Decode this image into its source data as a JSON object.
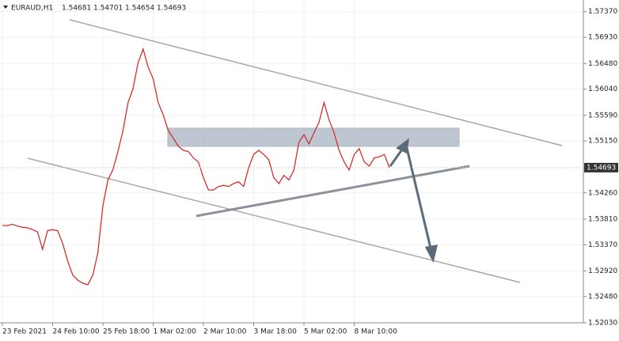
{
  "chart_data": {
    "type": "line",
    "title": "EURAUD,H1",
    "ohlc_header": [
      1.54681,
      1.54701,
      1.54654,
      1.54693
    ],
    "last_price": 1.54693,
    "categories": [
      "23 Feb 2021",
      null,
      null,
      null,
      null,
      null,
      null,
      null,
      null,
      null,
      "24 Feb 10:00",
      null,
      null,
      null,
      null,
      null,
      null,
      null,
      null,
      null,
      "25 Feb 18:00",
      null,
      null,
      null,
      null,
      null,
      null,
      null,
      null,
      null,
      "1 Mar 02:00",
      null,
      null,
      null,
      null,
      null,
      null,
      null,
      null,
      null,
      "2 Mar 10:00",
      null,
      null,
      null,
      null,
      null,
      null,
      null,
      null,
      null,
      "3 Mar 18:00",
      null,
      null,
      null,
      null,
      null,
      null,
      null,
      null,
      null,
      "5 Mar 02:00",
      null,
      null,
      null,
      null,
      null,
      null,
      null,
      null,
      null,
      "8 Mar 10:00",
      null,
      null,
      null,
      null,
      null,
      null,
      null
    ],
    "series": [
      {
        "name": "EURAUD",
        "color": "#d0312d",
        "values": [
          1.537,
          1.537,
          1.5372,
          1.5369,
          1.5367,
          1.5366,
          1.5363,
          1.5359,
          1.5329,
          1.5361,
          1.5363,
          1.5361,
          1.5339,
          1.5309,
          1.5285,
          1.5276,
          1.5271,
          1.5268,
          1.5285,
          1.5323,
          1.5404,
          1.5448,
          1.5466,
          1.5497,
          1.5533,
          1.5581,
          1.5605,
          1.5649,
          1.5673,
          1.5642,
          1.5622,
          1.5581,
          1.556,
          1.5533,
          1.552,
          1.5506,
          1.5499,
          1.5497,
          1.5486,
          1.5479,
          1.5452,
          1.5431,
          1.5431,
          1.5437,
          1.5439,
          1.5437,
          1.5442,
          1.5445,
          1.5437,
          1.5469,
          1.5492,
          1.5499,
          1.5492,
          1.5483,
          1.5452,
          1.5442,
          1.5456,
          1.5448,
          1.5465,
          1.5513,
          1.5526,
          1.551,
          1.5529,
          1.5547,
          1.5581,
          1.5551,
          1.5529,
          1.5499,
          1.5479,
          1.5465,
          1.5492,
          1.5502,
          1.5479,
          1.5472,
          1.5486,
          1.5488,
          1.5492,
          1.54693
        ]
      }
    ],
    "ylim": [
      1.5203,
      1.5757
    ],
    "yticks": [
      {
        "value": 1.5737,
        "label": "1.57370"
      },
      {
        "value": 1.5693,
        "label": "1.56930"
      },
      {
        "value": 1.5648,
        "label": "1.56480"
      },
      {
        "value": 1.5604,
        "label": "1.56040"
      },
      {
        "value": 1.5559,
        "label": "1.55590"
      },
      {
        "value": 1.5515,
        "label": "1.55150"
      },
      {
        "value": 1.5426,
        "label": "1.54260"
      },
      {
        "value": 1.5381,
        "label": "1.53810"
      },
      {
        "value": 1.5337,
        "label": "1.53370"
      },
      {
        "value": 1.5292,
        "label": "1.52920"
      },
      {
        "value": 1.5248,
        "label": "1.52480"
      },
      {
        "value": 1.5203,
        "label": "1.52030"
      }
    ],
    "grid": true
  }
}
